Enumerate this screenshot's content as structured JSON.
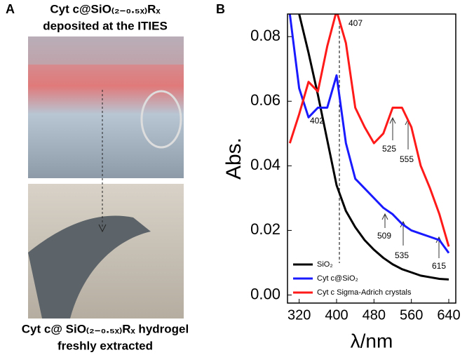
{
  "panel_a": {
    "label": "A",
    "top_caption": [
      "Cyt c@SiO₍₂₋₀.₅ₓ₎Rₓ",
      "deposited at the ITIES"
    ],
    "bottom_caption": [
      "Cyt c@ SiO₍₂₋₀.₅ₓ₎Rₓ hydrogel",
      "freshly extracted"
    ]
  },
  "chart_data": {
    "type": "line",
    "panel_label": "B",
    "ylabel": "Abs.",
    "xlabel": "λ/nm",
    "x": [
      300,
      320,
      340,
      360,
      380,
      400,
      420,
      440,
      460,
      480,
      500,
      520,
      540,
      560,
      580,
      600,
      620,
      640
    ],
    "series": [
      {
        "name": "SiO₂",
        "color": "#000000",
        "values": [
          null,
          0.087,
          0.075,
          0.062,
          0.048,
          0.034,
          0.026,
          0.021,
          0.017,
          0.014,
          0.0115,
          0.0095,
          0.008,
          0.007,
          0.006,
          0.0055,
          0.005,
          0.0048
        ]
      },
      {
        "name": "Cyt c@SiO₂",
        "color": "#1a1aff",
        "values": [
          0.087,
          0.064,
          0.055,
          0.058,
          0.058,
          0.068,
          0.047,
          0.036,
          0.033,
          0.03,
          0.027,
          0.025,
          0.022,
          0.02,
          0.019,
          0.018,
          0.017,
          0.013
        ]
      },
      {
        "name": "Cyt c Sigma-Adrich crystals",
        "color": "#ff1a1a",
        "values": [
          0.047,
          0.056,
          0.066,
          0.063,
          0.077,
          0.088,
          0.078,
          0.058,
          0.052,
          0.047,
          0.05,
          0.058,
          0.058,
          0.052,
          0.04,
          0.033,
          0.025,
          0.015
        ]
      }
    ],
    "xlim": [
      295,
      655
    ],
    "ylim": [
      -0.0025,
      0.087
    ],
    "xticks": [
      320,
      400,
      480,
      560,
      640
    ],
    "yticks": [
      {
        "value": 0,
        "label": "0.00"
      },
      0.02,
      0.04,
      0.06,
      0.08
    ],
    "annotations": [
      "407",
      "402",
      "525",
      "555",
      "509",
      "535",
      "615"
    ],
    "legend": "lower left"
  }
}
